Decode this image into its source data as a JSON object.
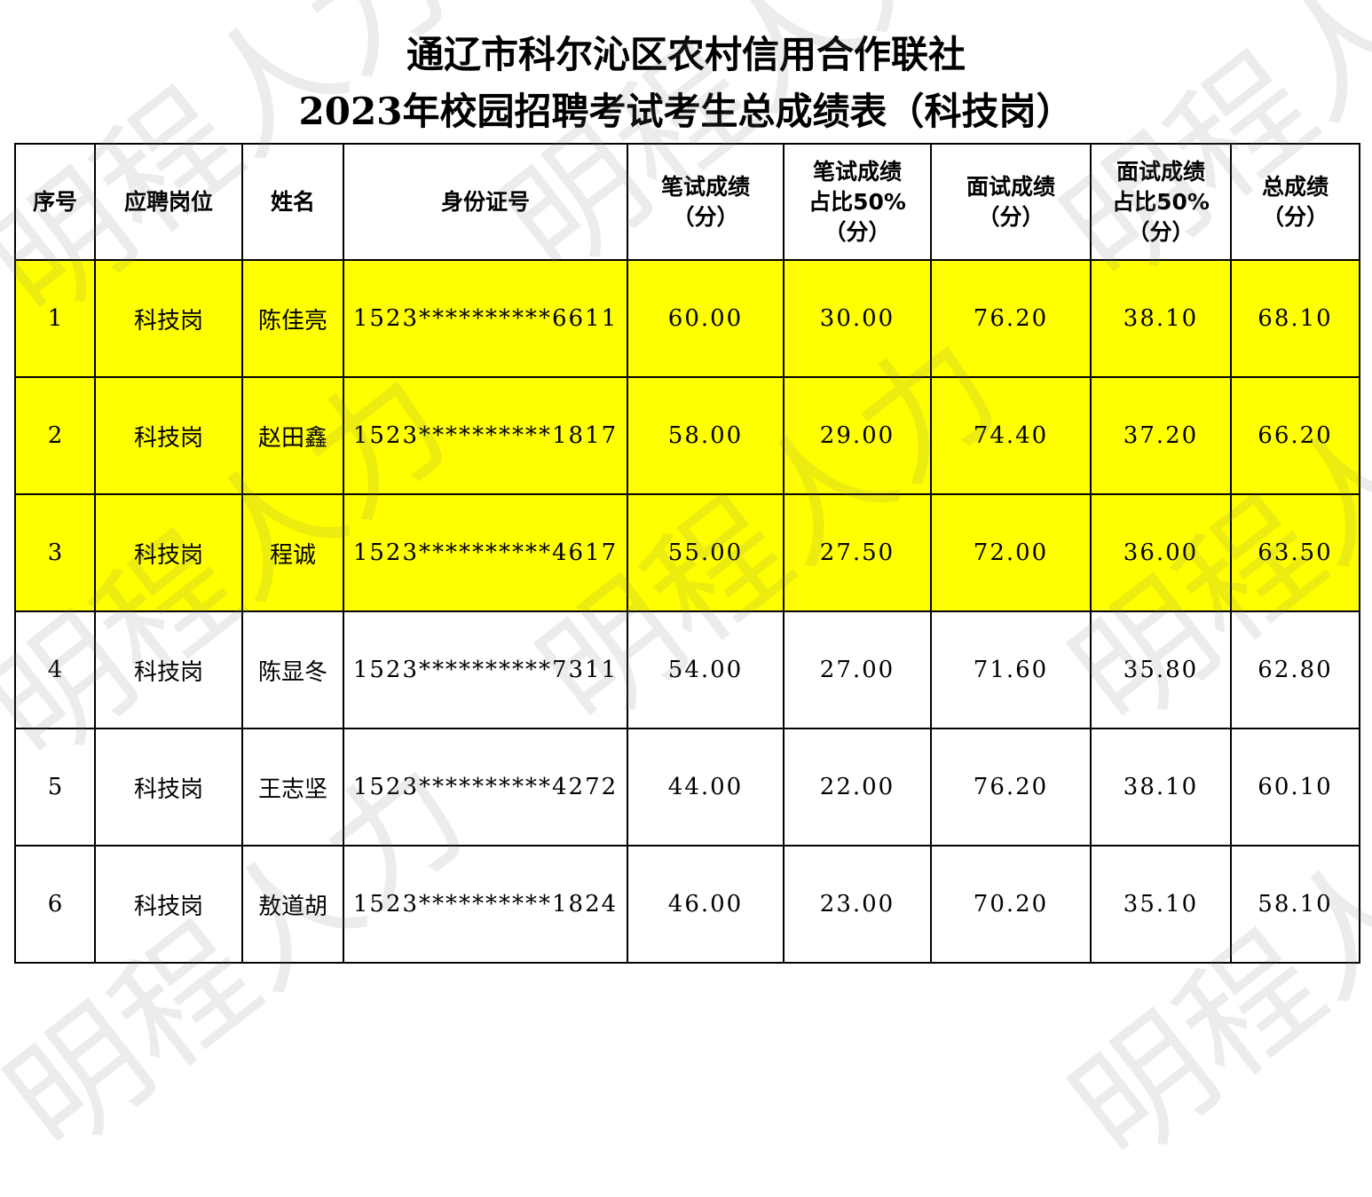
{
  "title": {
    "line1": "通辽市科尔沁区农村信用合作联社",
    "line2": "2023年校园招聘考试考生总成绩表（科技岗）"
  },
  "table": {
    "headers": [
      "序号",
      "应聘岗位",
      "姓名",
      "身份证号",
      "笔试成绩\n（分）",
      "笔试成绩\n占比50%\n（分）",
      "面试成绩\n（分）",
      "面试成绩\n占比50%\n（分）",
      "总成绩\n（分）"
    ],
    "rows": [
      {
        "seq": "1",
        "position": "科技岗",
        "name": "陈佳亮",
        "id": "1523**********6611",
        "written": "60.00",
        "written_50": "30.00",
        "interview": "76.20",
        "interview_50": "38.10",
        "total": "68.10"
      },
      {
        "seq": "2",
        "position": "科技岗",
        "name": "赵田鑫",
        "id": "1523**********1817",
        "written": "58.00",
        "written_50": "29.00",
        "interview": "74.40",
        "interview_50": "37.20",
        "total": "66.20"
      },
      {
        "seq": "3",
        "position": "科技岗",
        "name": "程诚",
        "id": "1523**********4617",
        "written": "55.00",
        "written_50": "27.50",
        "interview": "72.00",
        "interview_50": "36.00",
        "total": "63.50"
      },
      {
        "seq": "4",
        "position": "科技岗",
        "name": "陈显冬",
        "id": "1523**********7311",
        "written": "54.00",
        "written_50": "27.00",
        "interview": "71.60",
        "interview_50": "35.80",
        "total": "62.80"
      },
      {
        "seq": "5",
        "position": "科技岗",
        "name": "王志坚",
        "id": "1523**********4272",
        "written": "44.00",
        "written_50": "22.00",
        "interview": "76.20",
        "interview_50": "38.10",
        "total": "60.10"
      },
      {
        "seq": "6",
        "position": "科技岗",
        "name": "敖道胡",
        "id": "1523**********1824",
        "written": "46.00",
        "written_50": "23.00",
        "interview": "70.20",
        "interview_50": "35.10",
        "total": "58.10"
      }
    ],
    "highlight_color": "#ffff00"
  },
  "watermark": {
    "text": "明程人力"
  }
}
